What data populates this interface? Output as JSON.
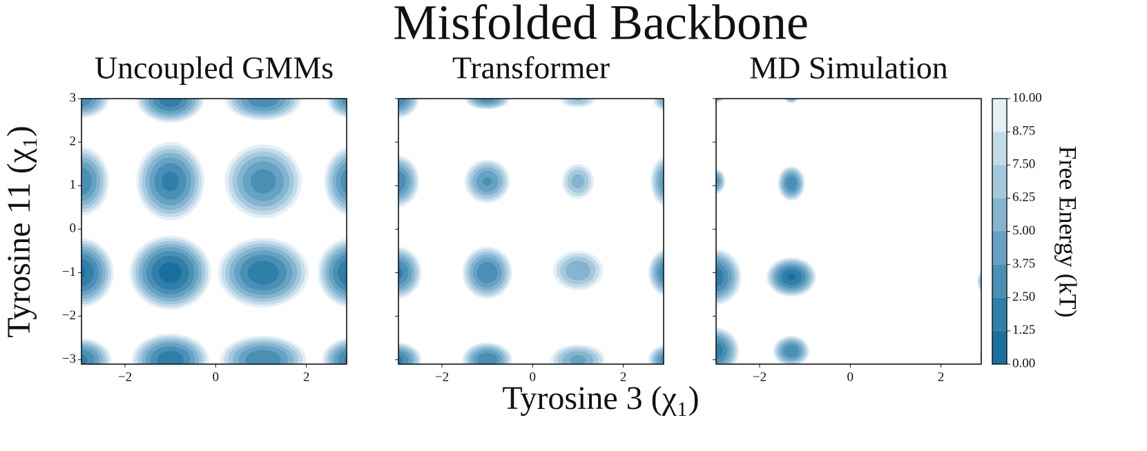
{
  "figure": {
    "title": "Misfolded Backbone",
    "xlabel": "Tyrosine 3 (χ₁)",
    "ylabel": "Tyrosine 11 (χ₁)",
    "colorbar": {
      "label": "Free Energy (kT)",
      "lim": [
        0,
        10
      ],
      "ticks": [
        {
          "value": 0,
          "label": "0.00"
        },
        {
          "value": 1.25,
          "label": "1.25"
        },
        {
          "value": 2.5,
          "label": "2.50"
        },
        {
          "value": 3.75,
          "label": "3.75"
        },
        {
          "value": 5,
          "label": "5.00"
        },
        {
          "value": 6.25,
          "label": "6.25"
        },
        {
          "value": 7.5,
          "label": "7.50"
        },
        {
          "value": 8.75,
          "label": "8.75"
        },
        {
          "value": 10,
          "label": "10.00"
        }
      ],
      "colors": [
        "#1b6f9c",
        "#2f7fa8",
        "#4a8fb4",
        "#66a2c3",
        "#84b5d0",
        "#a4c9dd",
        "#c4dcea",
        "#e4eff6"
      ]
    }
  },
  "chart_data": [
    {
      "type": "contour",
      "title": "Uncoupled GMMs",
      "xlim": [
        -2.96,
        2.89
      ],
      "ylim": [
        -3.1,
        3.0
      ],
      "xticks": [
        {
          "value": -2,
          "label": "−2"
        },
        0,
        2
      ],
      "yticks": [
        {
          "value": -3,
          "label": "−3"
        },
        {
          "value": -2,
          "label": "−2"
        },
        {
          "value": -1,
          "label": "−1"
        },
        0,
        1,
        2,
        3
      ],
      "wells": [
        {
          "x": -3,
          "y": -1,
          "min": 1,
          "rx": 0.75,
          "ry": 0.8
        },
        {
          "x": -1,
          "y": -1,
          "min": 0.5,
          "rx": 0.9,
          "ry": 0.85
        },
        {
          "x": 1.05,
          "y": -1,
          "min": 1.5,
          "rx": 1.0,
          "ry": 0.8
        },
        {
          "x": 3,
          "y": -1,
          "min": 1,
          "rx": 0.75,
          "ry": 0.8
        },
        {
          "x": -3,
          "y": 1.1,
          "min": 2.5,
          "rx": 0.65,
          "ry": 0.8
        },
        {
          "x": -1,
          "y": 1.1,
          "min": 2,
          "rx": 0.75,
          "ry": 0.9
        },
        {
          "x": 1.05,
          "y": 1.1,
          "min": 3,
          "rx": 0.85,
          "ry": 0.85
        },
        {
          "x": 3,
          "y": 1.1,
          "min": 2.5,
          "rx": 0.6,
          "ry": 0.8
        },
        {
          "x": -3,
          "y": -3,
          "min": 2,
          "rx": 0.7,
          "ry": 0.5
        },
        {
          "x": -1,
          "y": -3,
          "min": 1.5,
          "rx": 0.85,
          "ry": 0.6
        },
        {
          "x": 1.05,
          "y": -3,
          "min": 2.5,
          "rx": 0.95,
          "ry": 0.55
        },
        {
          "x": 3,
          "y": -3,
          "min": 2,
          "rx": 0.65,
          "ry": 0.5
        },
        {
          "x": -3,
          "y": 3,
          "min": 2.5,
          "rx": 0.65,
          "ry": 0.45
        },
        {
          "x": -1,
          "y": 3,
          "min": 1.5,
          "rx": 0.75,
          "ry": 0.55
        },
        {
          "x": 1.05,
          "y": 3,
          "min": 2.5,
          "rx": 0.85,
          "ry": 0.5
        },
        {
          "x": 3,
          "y": 3,
          "min": 2.5,
          "rx": 0.55,
          "ry": 0.45
        }
      ]
    },
    {
      "type": "contour",
      "title": "Transformer",
      "xlim": [
        -2.96,
        2.89
      ],
      "ylim": [
        -3.1,
        3.0
      ],
      "xticks": [
        {
          "value": -2,
          "label": "−2"
        },
        0,
        2
      ],
      "wells": [
        {
          "x": -3,
          "y": -1,
          "min": 2,
          "rx": 0.55,
          "ry": 0.6
        },
        {
          "x": -1,
          "y": -1,
          "min": 2.5,
          "rx": 0.55,
          "ry": 0.6
        },
        {
          "x": 1,
          "y": -0.95,
          "min": 5,
          "rx": 0.55,
          "ry": 0.45
        },
        {
          "x": 3,
          "y": -1,
          "min": 2,
          "rx": 0.45,
          "ry": 0.55
        },
        {
          "x": -3,
          "y": 1.1,
          "min": 2.5,
          "rx": 0.5,
          "ry": 0.6
        },
        {
          "x": -1,
          "y": 1.1,
          "min": 3.5,
          "rx": 0.5,
          "ry": 0.5
        },
        {
          "x": 1,
          "y": 1.1,
          "min": 5.5,
          "rx": 0.35,
          "ry": 0.4
        },
        {
          "x": 3,
          "y": 1.1,
          "min": 3,
          "rx": 0.4,
          "ry": 0.6
        },
        {
          "x": -3,
          "y": -3,
          "min": 2,
          "rx": 0.55,
          "ry": 0.4
        },
        {
          "x": -1,
          "y": -3,
          "min": 2.5,
          "rx": 0.55,
          "ry": 0.4
        },
        {
          "x": 1,
          "y": -3,
          "min": 4.5,
          "rx": 0.6,
          "ry": 0.35
        },
        {
          "x": 3,
          "y": -3,
          "min": 2.5,
          "rx": 0.45,
          "ry": 0.35
        },
        {
          "x": -3,
          "y": 3,
          "min": 2.5,
          "rx": 0.5,
          "ry": 0.45
        },
        {
          "x": -1,
          "y": 3,
          "min": 3,
          "rx": 0.5,
          "ry": 0.25
        },
        {
          "x": 1,
          "y": 3,
          "min": 6,
          "rx": 0.4,
          "ry": 0.2
        },
        {
          "x": 3,
          "y": 3,
          "min": 4,
          "rx": 0.35,
          "ry": 0.3
        }
      ]
    },
    {
      "type": "contour",
      "title": "MD Simulation",
      "xlim": [
        -2.96,
        2.89
      ],
      "ylim": [
        -3.1,
        3.0
      ],
      "xticks": [
        {
          "value": -2,
          "label": "−2"
        },
        0,
        2
      ],
      "wells": [
        {
          "x": -3,
          "y": -1.1,
          "min": 1.5,
          "rx": 0.6,
          "ry": 0.65
        },
        {
          "x": -1.3,
          "y": -1.1,
          "min": 1,
          "rx": 0.55,
          "ry": 0.45
        },
        {
          "x": -3,
          "y": 1.1,
          "min": 3,
          "rx": 0.25,
          "ry": 0.3
        },
        {
          "x": -1.3,
          "y": 1.05,
          "min": 2.5,
          "rx": 0.3,
          "ry": 0.4
        },
        {
          "x": -3,
          "y": -2.8,
          "min": 1.5,
          "rx": 0.55,
          "ry": 0.55
        },
        {
          "x": -1.3,
          "y": -2.8,
          "min": 2.5,
          "rx": 0.4,
          "ry": 0.35
        },
        {
          "x": 3,
          "y": -1.2,
          "min": 4,
          "rx": 0.2,
          "ry": 0.3
        },
        {
          "x": 3,
          "y": -2.9,
          "min": 4,
          "rx": 0.15,
          "ry": 0.25
        },
        {
          "x": -1.3,
          "y": 3,
          "min": 5,
          "rx": 0.15,
          "ry": 0.1
        },
        {
          "x": -3,
          "y": 3,
          "min": 5,
          "rx": 0.2,
          "ry": 0.1
        }
      ]
    }
  ]
}
